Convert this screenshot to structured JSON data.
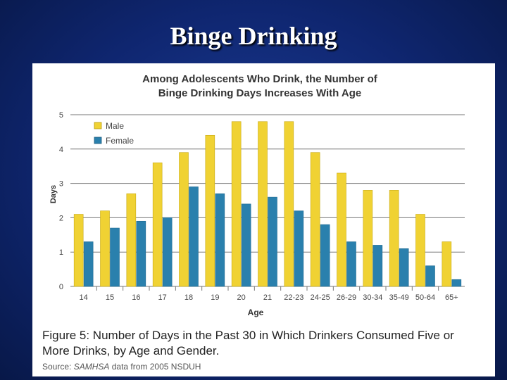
{
  "slide": {
    "title": "Binge Drinking"
  },
  "figure": {
    "caption_line1": "Figure 5: Number of Days in the Past 30 in Which Drinkers Consumed Five or",
    "caption_line2": "More Drinks, by Age and Gender.",
    "source_label": "Source: ",
    "source_italic": "SAMHSA",
    "source_rest": " data from 2005 NSDUH"
  },
  "chart_data": {
    "type": "bar",
    "title_line1": "Among Adolescents Who Drink, the Number of",
    "title_line2": "Binge Drinking Days Increases With Age",
    "xlabel": "Age",
    "ylabel": "Days",
    "ylim": [
      0,
      5
    ],
    "yticks": [
      0,
      1,
      2,
      3,
      4,
      5
    ],
    "grid": true,
    "legend_position": "top-left",
    "categories": [
      "14",
      "15",
      "16",
      "17",
      "18",
      "19",
      "20",
      "21",
      "22-23",
      "24-25",
      "26-29",
      "30-34",
      "35-49",
      "50-64",
      "65+"
    ],
    "series": [
      {
        "name": "Male",
        "color": "#f0d233",
        "values": [
          2.1,
          2.2,
          2.7,
          3.6,
          3.9,
          4.4,
          4.8,
          4.8,
          4.8,
          3.9,
          3.3,
          2.8,
          2.8,
          2.1,
          1.3
        ]
      },
      {
        "name": "Female",
        "color": "#2a80ad",
        "values": [
          1.3,
          1.7,
          1.9,
          2.0,
          2.9,
          2.7,
          2.4,
          2.6,
          2.2,
          1.8,
          1.3,
          1.2,
          1.1,
          0.6,
          0.2
        ]
      }
    ]
  }
}
